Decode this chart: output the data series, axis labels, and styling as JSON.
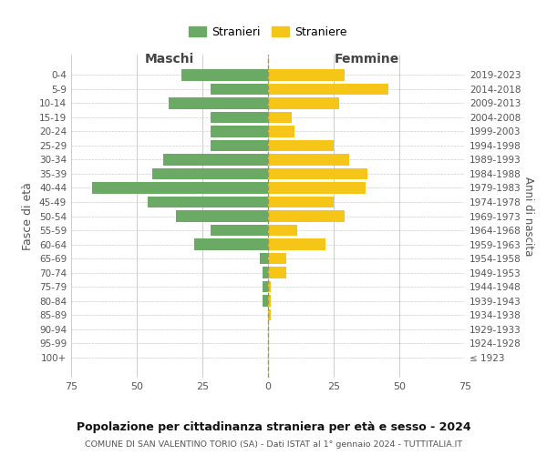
{
  "age_groups": [
    "0-4",
    "5-9",
    "10-14",
    "15-19",
    "20-24",
    "25-29",
    "30-34",
    "35-39",
    "40-44",
    "45-49",
    "50-54",
    "55-59",
    "60-64",
    "65-69",
    "70-74",
    "75-79",
    "80-84",
    "85-89",
    "90-94",
    "95-99",
    "100+"
  ],
  "birth_years": [
    "2019-2023",
    "2014-2018",
    "2009-2013",
    "2004-2008",
    "1999-2003",
    "1994-1998",
    "1989-1993",
    "1984-1988",
    "1979-1983",
    "1974-1978",
    "1969-1973",
    "1964-1968",
    "1959-1963",
    "1954-1958",
    "1949-1953",
    "1944-1948",
    "1939-1943",
    "1934-1938",
    "1929-1933",
    "1924-1928",
    "≤ 1923"
  ],
  "maschi": [
    33,
    22,
    38,
    22,
    22,
    22,
    40,
    44,
    67,
    46,
    35,
    22,
    28,
    3,
    2,
    2,
    2,
    0,
    0,
    0,
    0
  ],
  "femmine": [
    29,
    46,
    27,
    9,
    10,
    25,
    31,
    38,
    37,
    25,
    29,
    11,
    22,
    7,
    7,
    1,
    1,
    1,
    0,
    0,
    0
  ],
  "maschi_color": "#6aaa64",
  "femmine_color": "#f5c518",
  "grid_color": "#cccccc",
  "title": "Popolazione per cittadinanza straniera per età e sesso - 2024",
  "subtitle": "COMUNE DI SAN VALENTINO TORIO (SA) - Dati ISTAT al 1° gennaio 2024 - TUTTITALIA.IT",
  "left_label": "Maschi",
  "right_label": "Femmine",
  "ylabel": "Fasce di età",
  "right_ylabel": "Anni di nascita",
  "legend_maschi": "Stranieri",
  "legend_femmine": "Straniere",
  "xlim": 75
}
